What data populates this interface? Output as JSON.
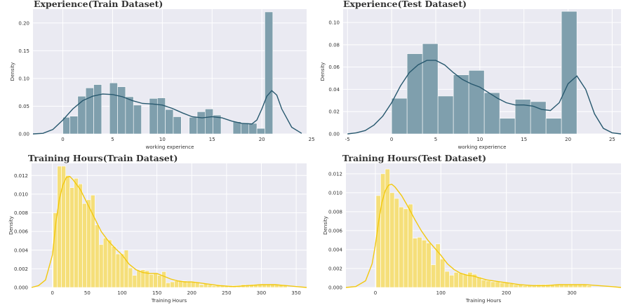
{
  "chart_data": [
    {
      "type": "histogram+kde",
      "title": "Experience(Train Dataset)",
      "xlabel": "working experience",
      "ylabel": "Density",
      "xlim": [
        -3,
        24.5
      ],
      "ylim": [
        0,
        0.225
      ],
      "xticks": [
        0,
        5,
        10,
        15,
        20,
        25
      ],
      "yticks": [
        0.0,
        0.05,
        0.1,
        0.15,
        0.2
      ],
      "ytick_labels": [
        "0.00",
        "0.05",
        "0.10",
        "0.15",
        "0.20"
      ],
      "grid": true,
      "bar_color": "#7f9fad",
      "line_color": "#27586e",
      "background": "#eaeaf2",
      "bins": [
        [
          0,
          0.7,
          0.03
        ],
        [
          0.7,
          1.5,
          0.032
        ],
        [
          1.5,
          2.3,
          0.068
        ],
        [
          2.3,
          3.1,
          0.083
        ],
        [
          3.1,
          3.9,
          0.089
        ],
        [
          4.7,
          5.5,
          0.092
        ],
        [
          5.5,
          6.3,
          0.085
        ],
        [
          6.3,
          7.1,
          0.067
        ],
        [
          7.1,
          7.9,
          0.052
        ],
        [
          8.7,
          9.5,
          0.064
        ],
        [
          9.5,
          10.3,
          0.065
        ],
        [
          10.3,
          11.1,
          0.044
        ],
        [
          11.1,
          11.9,
          0.031
        ],
        [
          12.7,
          13.5,
          0.03
        ],
        [
          13.5,
          14.3,
          0.04
        ],
        [
          14.3,
          15.1,
          0.045
        ],
        [
          15.1,
          15.9,
          0.034
        ],
        [
          17.1,
          17.9,
          0.022
        ],
        [
          17.9,
          18.7,
          0.02
        ],
        [
          18.7,
          19.5,
          0.019
        ],
        [
          19.5,
          20.3,
          0.01
        ],
        [
          20.3,
          21.1,
          0.22
        ]
      ],
      "kde": [
        [
          -3,
          0.0
        ],
        [
          -2,
          0.001
        ],
        [
          -1,
          0.008
        ],
        [
          0,
          0.025
        ],
        [
          1,
          0.045
        ],
        [
          2,
          0.06
        ],
        [
          3,
          0.068
        ],
        [
          4,
          0.072
        ],
        [
          5,
          0.071
        ],
        [
          6,
          0.067
        ],
        [
          7,
          0.06
        ],
        [
          8,
          0.055
        ],
        [
          9,
          0.054
        ],
        [
          10,
          0.052
        ],
        [
          11,
          0.046
        ],
        [
          12,
          0.038
        ],
        [
          13,
          0.031
        ],
        [
          14,
          0.029
        ],
        [
          15,
          0.031
        ],
        [
          16,
          0.029
        ],
        [
          17,
          0.023
        ],
        [
          18,
          0.019
        ],
        [
          19,
          0.018
        ],
        [
          19.5,
          0.025
        ],
        [
          20,
          0.045
        ],
        [
          20.5,
          0.068
        ],
        [
          21,
          0.078
        ],
        [
          21.5,
          0.07
        ],
        [
          22,
          0.045
        ],
        [
          23,
          0.012
        ],
        [
          24,
          0.001
        ]
      ]
    },
    {
      "type": "histogram+kde",
      "title": "Experience(Test Dataset)",
      "xlabel": "working experience",
      "ylabel": "Density",
      "xlim": [
        -5.5,
        26
      ],
      "ylim": [
        0,
        0.112
      ],
      "xticks": [
        -5,
        0,
        5,
        10,
        15,
        20,
        25
      ],
      "yticks": [
        0.0,
        0.02,
        0.04,
        0.06,
        0.08,
        0.1
      ],
      "ytick_labels": [
        "0.00",
        "0.02",
        "0.04",
        "0.06",
        "0.08",
        "0.10"
      ],
      "grid": true,
      "bar_color": "#7f9fad",
      "line_color": "#27586e",
      "background": "#eaeaf2",
      "bins": [
        [
          0,
          1.75,
          0.032
        ],
        [
          1.75,
          3.5,
          0.072
        ],
        [
          3.5,
          5.25,
          0.081
        ],
        [
          5.25,
          7,
          0.034
        ],
        [
          7,
          8.75,
          0.053
        ],
        [
          8.75,
          10.5,
          0.057
        ],
        [
          10.5,
          12.25,
          0.037
        ],
        [
          12.25,
          14,
          0.014
        ],
        [
          14,
          15.75,
          0.031
        ],
        [
          15.75,
          17.5,
          0.029
        ],
        [
          17.5,
          19.25,
          0.014
        ],
        [
          19.25,
          21,
          0.11
        ]
      ],
      "kde": [
        [
          -5,
          0.0
        ],
        [
          -4,
          0.001
        ],
        [
          -3,
          0.003
        ],
        [
          -2,
          0.008
        ],
        [
          -1,
          0.016
        ],
        [
          0,
          0.028
        ],
        [
          1,
          0.043
        ],
        [
          2,
          0.055
        ],
        [
          3,
          0.062
        ],
        [
          4,
          0.066
        ],
        [
          5,
          0.066
        ],
        [
          6,
          0.062
        ],
        [
          7,
          0.055
        ],
        [
          8,
          0.049
        ],
        [
          9,
          0.045
        ],
        [
          10,
          0.042
        ],
        [
          11,
          0.037
        ],
        [
          12,
          0.032
        ],
        [
          13,
          0.028
        ],
        [
          14,
          0.026
        ],
        [
          15,
          0.026
        ],
        [
          16,
          0.025
        ],
        [
          17,
          0.022
        ],
        [
          18,
          0.021
        ],
        [
          19,
          0.028
        ],
        [
          20,
          0.045
        ],
        [
          21,
          0.052
        ],
        [
          22,
          0.04
        ],
        [
          23,
          0.018
        ],
        [
          24,
          0.005
        ],
        [
          25,
          0.001
        ],
        [
          26,
          0.0
        ]
      ]
    },
    {
      "type": "histogram+kde",
      "title": "Training Hours(Train Dataset)",
      "xlabel": "Training Hours",
      "ylabel": "Density",
      "xlim": [
        -30,
        365
      ],
      "ylim": [
        0,
        0.0133
      ],
      "xticks": [
        0,
        50,
        100,
        150,
        200,
        250,
        300,
        350
      ],
      "yticks": [
        0.0,
        0.002,
        0.004,
        0.006,
        0.008,
        0.01,
        0.012
      ],
      "ytick_labels": [
        "0.000",
        "0.002",
        "0.004",
        "0.006",
        "0.008",
        "0.010",
        "0.012"
      ],
      "grid": true,
      "bar_color": "#f5df7a",
      "line_color": "#f2c80f",
      "background": "#eaeaf2",
      "bins": [
        [
          1,
          7,
          0.008
        ],
        [
          7,
          13,
          0.013
        ],
        [
          13,
          19,
          0.013
        ],
        [
          19,
          25,
          0.012
        ],
        [
          25,
          31,
          0.0107
        ],
        [
          31,
          37,
          0.0117
        ],
        [
          37,
          43,
          0.0111
        ],
        [
          43,
          49,
          0.009
        ],
        [
          49,
          55,
          0.0094
        ],
        [
          55,
          61,
          0.0099
        ],
        [
          61,
          67,
          0.0067
        ],
        [
          67,
          73,
          0.0046
        ],
        [
          73,
          79,
          0.0053
        ],
        [
          79,
          85,
          0.0051
        ],
        [
          85,
          91,
          0.0044
        ],
        [
          91,
          97,
          0.0036
        ],
        [
          97,
          103,
          0.0036
        ],
        [
          103,
          109,
          0.004
        ],
        [
          109,
          115,
          0.0021
        ],
        [
          115,
          121,
          0.0013
        ],
        [
          121,
          127,
          0.0018
        ],
        [
          127,
          133,
          0.0019
        ],
        [
          133,
          139,
          0.0018
        ],
        [
          139,
          145,
          0.0014
        ],
        [
          145,
          151,
          0.0015
        ],
        [
          151,
          157,
          0.0013
        ],
        [
          157,
          163,
          0.0017
        ],
        [
          163,
          169,
          0.0005
        ],
        [
          169,
          175,
          0.0006
        ],
        [
          175,
          181,
          0.0007
        ],
        [
          181,
          187,
          0.0007
        ],
        [
          187,
          193,
          0.0007
        ],
        [
          193,
          199,
          0.0006
        ],
        [
          199,
          205,
          0.0006
        ],
        [
          205,
          211,
          0.0005
        ],
        [
          211,
          217,
          0.0003
        ],
        [
          217,
          223,
          0.0004
        ],
        [
          223,
          229,
          0.0003
        ],
        [
          229,
          235,
          0.0002
        ],
        [
          235,
          241,
          0.0003
        ],
        [
          241,
          247,
          0.0002
        ],
        [
          247,
          253,
          0.0002
        ],
        [
          253,
          259,
          0.0002
        ],
        [
          259,
          265,
          0.0002
        ],
        [
          265,
          271,
          0.0002
        ],
        [
          271,
          277,
          0.0003
        ],
        [
          277,
          283,
          0.0002
        ],
        [
          283,
          289,
          0.0003
        ],
        [
          289,
          295,
          0.0003
        ],
        [
          295,
          301,
          0.0003
        ],
        [
          301,
          307,
          0.0003
        ],
        [
          307,
          313,
          0.0003
        ],
        [
          313,
          319,
          0.0003
        ],
        [
          319,
          325,
          0.0003
        ],
        [
          325,
          331,
          0.0003
        ],
        [
          331,
          337,
          0.0002
        ]
      ],
      "kde": [
        [
          -30,
          0.0
        ],
        [
          -20,
          0.0002
        ],
        [
          -10,
          0.0008
        ],
        [
          0,
          0.0035
        ],
        [
          5,
          0.007
        ],
        [
          10,
          0.0095
        ],
        [
          15,
          0.011
        ],
        [
          20,
          0.0118
        ],
        [
          25,
          0.0119
        ],
        [
          30,
          0.0115
        ],
        [
          40,
          0.0105
        ],
        [
          50,
          0.009
        ],
        [
          60,
          0.0075
        ],
        [
          70,
          0.006
        ],
        [
          80,
          0.005
        ],
        [
          90,
          0.0042
        ],
        [
          100,
          0.0035
        ],
        [
          110,
          0.0025
        ],
        [
          120,
          0.0019
        ],
        [
          130,
          0.0016
        ],
        [
          140,
          0.0015
        ],
        [
          150,
          0.0015
        ],
        [
          160,
          0.0012
        ],
        [
          170,
          0.0009
        ],
        [
          180,
          0.0007
        ],
        [
          190,
          0.0006
        ],
        [
          200,
          0.0006
        ],
        [
          210,
          0.0005
        ],
        [
          220,
          0.0004
        ],
        [
          240,
          0.0002
        ],
        [
          260,
          0.0001
        ],
        [
          280,
          0.0002
        ],
        [
          300,
          0.0003
        ],
        [
          320,
          0.0003
        ],
        [
          335,
          0.0002
        ],
        [
          350,
          0.0001
        ],
        [
          365,
          0.0
        ]
      ]
    },
    {
      "type": "histogram+kde",
      "title": "Training Hours(Test Dataset)",
      "xlabel": "Training Hours",
      "ylabel": "Density",
      "xlim": [
        -45,
        375
      ],
      "ylim": [
        0,
        0.0131
      ],
      "xticks": [
        0,
        100,
        200,
        300
      ],
      "yticks": [
        0.0,
        0.002,
        0.004,
        0.006,
        0.008,
        0.01,
        0.012
      ],
      "ytick_labels": [
        "0.000",
        "0.002",
        "0.004",
        "0.006",
        "0.008",
        "0.010",
        "0.012"
      ],
      "grid": true,
      "bar_color": "#f5df7a",
      "line_color": "#f2c80f",
      "background": "#eaeaf2",
      "bins": [
        [
          1,
          8,
          0.0097
        ],
        [
          8,
          15,
          0.012
        ],
        [
          15,
          22,
          0.0125
        ],
        [
          22,
          29,
          0.01
        ],
        [
          29,
          36,
          0.0094
        ],
        [
          36,
          43,
          0.0085
        ],
        [
          43,
          50,
          0.0083
        ],
        [
          50,
          57,
          0.0088
        ],
        [
          57,
          64,
          0.0052
        ],
        [
          64,
          71,
          0.0053
        ],
        [
          71,
          78,
          0.005
        ],
        [
          78,
          85,
          0.0047
        ],
        [
          85,
          92,
          0.0024
        ],
        [
          92,
          99,
          0.0046
        ],
        [
          99,
          106,
          0.003
        ],
        [
          106,
          113,
          0.0017
        ],
        [
          113,
          120,
          0.0013
        ],
        [
          120,
          127,
          0.0016
        ],
        [
          127,
          134,
          0.0015
        ],
        [
          134,
          141,
          0.0014
        ],
        [
          141,
          148,
          0.0016
        ],
        [
          148,
          155,
          0.0014
        ],
        [
          155,
          162,
          0.0011
        ],
        [
          162,
          169,
          0.0008
        ],
        [
          169,
          176,
          0.0007
        ],
        [
          176,
          183,
          0.0006
        ],
        [
          183,
          190,
          0.0006
        ],
        [
          190,
          197,
          0.0005
        ],
        [
          197,
          204,
          0.0005
        ],
        [
          204,
          211,
          0.0004
        ],
        [
          211,
          218,
          0.0003
        ],
        [
          218,
          225,
          0.0003
        ],
        [
          225,
          232,
          0.0002
        ],
        [
          232,
          239,
          0.0002
        ],
        [
          239,
          246,
          0.0002
        ],
        [
          246,
          253,
          0.0003
        ],
        [
          253,
          260,
          0.0003
        ],
        [
          260,
          267,
          0.0003
        ],
        [
          267,
          274,
          0.0003
        ],
        [
          274,
          281,
          0.0003
        ],
        [
          281,
          288,
          0.0003
        ],
        [
          288,
          295,
          0.0003
        ],
        [
          295,
          302,
          0.0003
        ],
        [
          302,
          309,
          0.0003
        ],
        [
          309,
          316,
          0.0003
        ],
        [
          316,
          323,
          0.0003
        ],
        [
          323,
          330,
          0.0002
        ]
      ],
      "kde": [
        [
          -45,
          0.0
        ],
        [
          -30,
          0.0001
        ],
        [
          -15,
          0.0007
        ],
        [
          -5,
          0.0025
        ],
        [
          0,
          0.0045
        ],
        [
          5,
          0.007
        ],
        [
          10,
          0.009
        ],
        [
          15,
          0.0102
        ],
        [
          20,
          0.0108
        ],
        [
          25,
          0.0109
        ],
        [
          30,
          0.0106
        ],
        [
          40,
          0.0097
        ],
        [
          50,
          0.0085
        ],
        [
          60,
          0.0072
        ],
        [
          70,
          0.006
        ],
        [
          80,
          0.005
        ],
        [
          90,
          0.0042
        ],
        [
          100,
          0.0034
        ],
        [
          110,
          0.0025
        ],
        [
          120,
          0.0019
        ],
        [
          130,
          0.0015
        ],
        [
          140,
          0.0013
        ],
        [
          150,
          0.0012
        ],
        [
          160,
          0.001
        ],
        [
          170,
          0.0008
        ],
        [
          180,
          0.0007
        ],
        [
          190,
          0.0006
        ],
        [
          200,
          0.0005
        ],
        [
          220,
          0.0003
        ],
        [
          240,
          0.0002
        ],
        [
          260,
          0.0002
        ],
        [
          280,
          0.0003
        ],
        [
          300,
          0.0003
        ],
        [
          320,
          0.0003
        ],
        [
          340,
          0.0002
        ],
        [
          360,
          0.0001
        ],
        [
          375,
          0.0
        ]
      ]
    }
  ]
}
